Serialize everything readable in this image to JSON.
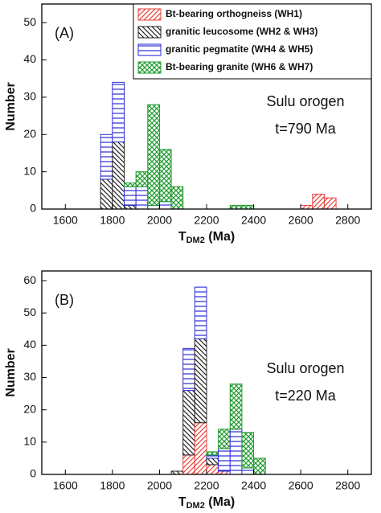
{
  "chart_data": [
    {
      "type": "histogram",
      "panel_label": "(A)",
      "annotation": [
        "Sulu orogen",
        "t=790 Ma"
      ],
      "y_label": "Number",
      "x_label": "T",
      "x_label_sub": "DM2",
      "x_label_unit": " (Ma)",
      "xlim": [
        1500,
        2900
      ],
      "xticks": [
        1600,
        1800,
        2000,
        2200,
        2400,
        2600,
        2800
      ],
      "ylim": [
        0,
        55
      ],
      "yticks": [
        0,
        10,
        20,
        30,
        40,
        50
      ],
      "legend": "upper right",
      "bins": [
        1750,
        1800,
        1850,
        1900,
        1950,
        2000,
        2050,
        2100,
        2150,
        2200,
        2250,
        2300,
        2350,
        2400,
        2450,
        2500,
        2550,
        2600,
        2650,
        2700,
        2750
      ],
      "series": [
        {
          "name": "Bt-bearing orthogneiss (WH1)",
          "color": "#e8413c",
          "hatch": "diag-up",
          "values": [
            0,
            0,
            0,
            0,
            0,
            0,
            0,
            0,
            0,
            0,
            0,
            0,
            0,
            0,
            0,
            0,
            0,
            1,
            4,
            3
          ]
        },
        {
          "name": "granitic leucosome (WH2 & WH3)",
          "color": "#222222",
          "hatch": "diag-down",
          "values": [
            8,
            18,
            1,
            0,
            0,
            0,
            0,
            0,
            0,
            0,
            0,
            0,
            0,
            0,
            0,
            0,
            0,
            0,
            0,
            0
          ]
        },
        {
          "name": "granitic pegmatite (WH4 & WH5)",
          "color": "#2b2bd6",
          "hatch": "horizontal",
          "values": [
            12,
            16,
            5,
            6,
            1,
            2,
            0,
            0,
            0,
            0,
            0,
            0,
            0,
            0,
            0,
            0,
            0,
            0,
            0,
            0
          ]
        },
        {
          "name": "Bt-bearing granite (WH6 & WH7)",
          "color": "#1e9a2e",
          "hatch": "cross",
          "values": [
            0,
            0,
            1,
            4,
            27,
            14,
            6,
            0,
            0,
            0,
            0,
            1,
            1,
            0,
            0,
            0,
            0,
            0,
            0,
            0
          ]
        }
      ]
    },
    {
      "type": "histogram",
      "panel_label": "(B)",
      "annotation": [
        "Sulu orogen",
        "t=220 Ma"
      ],
      "y_label": "Number",
      "x_label": "T",
      "x_label_sub": "DM2",
      "x_label_unit": " (Ma)",
      "xlim": [
        1500,
        2900
      ],
      "xticks": [
        1600,
        1800,
        2000,
        2200,
        2400,
        2600,
        2800
      ],
      "ylim": [
        0,
        63
      ],
      "yticks": [
        0,
        10,
        20,
        30,
        40,
        50,
        60
      ],
      "bins": [
        2050,
        2100,
        2150,
        2200,
        2250,
        2300,
        2350,
        2400,
        2450
      ],
      "series": [
        {
          "color": "#e8413c",
          "hatch": "diag-up",
          "values": [
            0,
            6,
            16,
            3,
            1,
            0,
            0,
            0
          ]
        },
        {
          "color": "#222222",
          "hatch": "diag-down",
          "values": [
            1,
            20,
            26,
            2,
            0,
            0,
            0,
            0
          ]
        },
        {
          "color": "#2b2bd6",
          "hatch": "horizontal",
          "values": [
            0,
            13,
            16,
            1,
            7,
            14,
            2,
            0
          ]
        },
        {
          "color": "#1e9a2e",
          "hatch": "cross",
          "values": [
            0,
            0,
            0,
            1,
            6,
            14,
            11,
            5
          ]
        }
      ]
    }
  ]
}
